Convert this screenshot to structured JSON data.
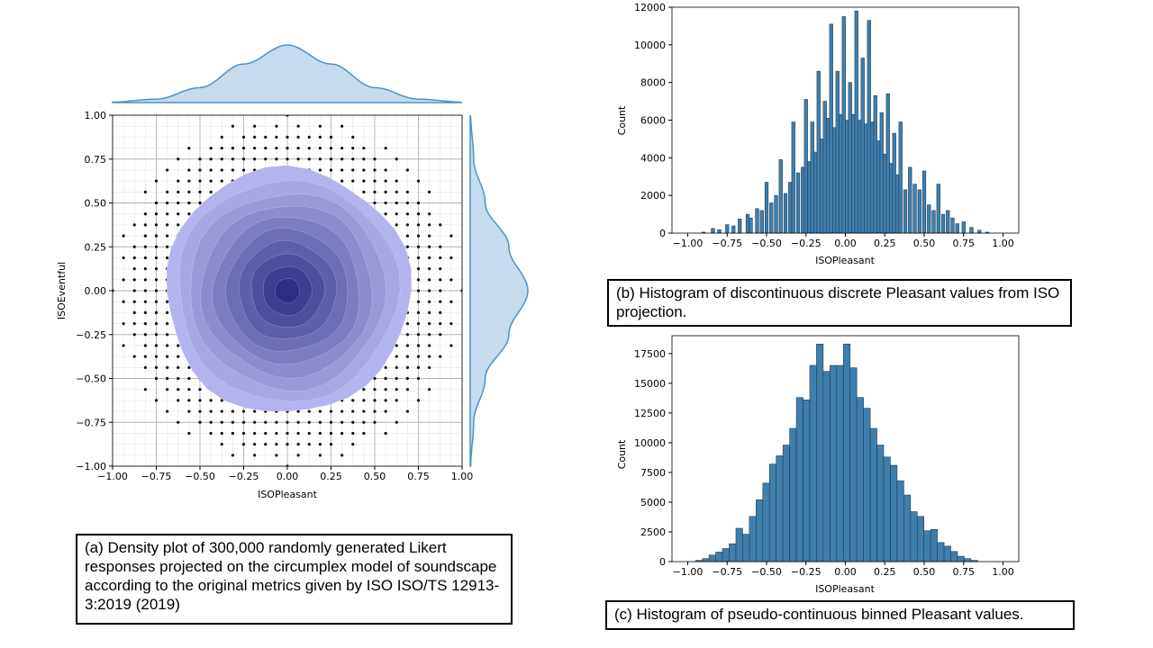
{
  "captions": {
    "a": "(a) Density plot of 300,000 randomly generated Likert responses projected on the circumplex model of soundscape according to the original metrics given by ISO ISO/TS 12913-3:2019 (2019)",
    "b": "(b) Histogram of discontinuous discrete Pleasant values from ISO projection.",
    "c": "(c) Histogram of pseudo-continuous binned Pleasant values."
  },
  "colors": {
    "kde_fill": "#c6dbee",
    "kde_line": "#4b93c8",
    "bar_fill": "#3f7fae",
    "bar_edge": "#1f3d55",
    "point": "#111111",
    "density_outer": "#b3b3ee",
    "density_inner": "#2e2e86"
  },
  "chart_data": [
    {
      "id": "a",
      "type": "scatter",
      "title": "",
      "xlabel": "ISOPleasant",
      "ylabel": "ISOEventful",
      "xlim": [
        -1.0,
        1.0
      ],
      "ylim": [
        -1.0,
        1.0
      ],
      "xticks": [
        "−1.00",
        "−0.75",
        "−0.50",
        "−0.25",
        "0.00",
        "0.25",
        "0.50",
        "0.75",
        "1.00"
      ],
      "yticks": [
        "−1.00",
        "−0.75",
        "−0.50",
        "−0.25",
        "0.00",
        "0.25",
        "0.50",
        "0.75",
        "1.00"
      ],
      "grid": true,
      "points": "discrete Likert projections on a grid of step 0.0625, shown within radius 1.0",
      "density_contour_radius": 0.7,
      "marginal_kde": {
        "x": [
          -1.0,
          -0.75,
          -0.5,
          -0.25,
          0.0,
          0.25,
          0.5,
          0.75,
          1.0
        ],
        "density": [
          0.01,
          0.06,
          0.26,
          0.67,
          1.0,
          0.67,
          0.26,
          0.06,
          0.01
        ]
      }
    },
    {
      "id": "b",
      "type": "bar",
      "title": "",
      "xlabel": "ISOPleasant",
      "ylabel": "Count",
      "xlim": [
        -1.1,
        1.1
      ],
      "ylim": [
        0,
        12000
      ],
      "xticks": [
        "−1.00",
        "−0.75",
        "−0.50",
        "−0.25",
        "0.00",
        "0.25",
        "0.50",
        "0.75",
        "1.00"
      ],
      "yticks": [
        "0",
        "2000",
        "4000",
        "6000",
        "8000",
        "10000",
        "12000"
      ],
      "bin_width": 0.0208,
      "bins": [
        {
          "x": -0.9,
          "y": 50
        },
        {
          "x": -0.84,
          "y": 250
        },
        {
          "x": -0.8,
          "y": 180
        },
        {
          "x": -0.75,
          "y": 450
        },
        {
          "x": -0.71,
          "y": 380
        },
        {
          "x": -0.67,
          "y": 750
        },
        {
          "x": -0.62,
          "y": 1000
        },
        {
          "x": -0.6,
          "y": 800
        },
        {
          "x": -0.56,
          "y": 1300
        },
        {
          "x": -0.53,
          "y": 1200
        },
        {
          "x": -0.5,
          "y": 2700
        },
        {
          "x": -0.47,
          "y": 1600
        },
        {
          "x": -0.44,
          "y": 2000
        },
        {
          "x": -0.41,
          "y": 3900
        },
        {
          "x": -0.38,
          "y": 2100
        },
        {
          "x": -0.35,
          "y": 2700
        },
        {
          "x": -0.33,
          "y": 5900
        },
        {
          "x": -0.3,
          "y": 3200
        },
        {
          "x": -0.27,
          "y": 3500
        },
        {
          "x": -0.25,
          "y": 7100
        },
        {
          "x": -0.23,
          "y": 3800
        },
        {
          "x": -0.21,
          "y": 5900
        },
        {
          "x": -0.19,
          "y": 4300
        },
        {
          "x": -0.17,
          "y": 8600
        },
        {
          "x": -0.15,
          "y": 5000
        },
        {
          "x": -0.13,
          "y": 7000
        },
        {
          "x": -0.11,
          "y": 6100
        },
        {
          "x": -0.09,
          "y": 11100
        },
        {
          "x": -0.07,
          "y": 5600
        },
        {
          "x": -0.05,
          "y": 8600
        },
        {
          "x": -0.03,
          "y": 6300
        },
        {
          "x": -0.01,
          "y": 11500
        },
        {
          "x": 0.01,
          "y": 6000
        },
        {
          "x": 0.03,
          "y": 8000
        },
        {
          "x": 0.05,
          "y": 6300
        },
        {
          "x": 0.07,
          "y": 11800
        },
        {
          "x": 0.09,
          "y": 6000
        },
        {
          "x": 0.11,
          "y": 9300
        },
        {
          "x": 0.13,
          "y": 5800
        },
        {
          "x": 0.15,
          "y": 11300
        },
        {
          "x": 0.17,
          "y": 5900
        },
        {
          "x": 0.19,
          "y": 7300
        },
        {
          "x": 0.21,
          "y": 4900
        },
        {
          "x": 0.23,
          "y": 6400
        },
        {
          "x": 0.25,
          "y": 4200
        },
        {
          "x": 0.27,
          "y": 7400
        },
        {
          "x": 0.29,
          "y": 3700
        },
        {
          "x": 0.31,
          "y": 5300
        },
        {
          "x": 0.33,
          "y": 3100
        },
        {
          "x": 0.35,
          "y": 5900
        },
        {
          "x": 0.38,
          "y": 2300
        },
        {
          "x": 0.41,
          "y": 3500
        },
        {
          "x": 0.44,
          "y": 2600
        },
        {
          "x": 0.47,
          "y": 2300
        },
        {
          "x": 0.5,
          "y": 3300
        },
        {
          "x": 0.53,
          "y": 1500
        },
        {
          "x": 0.56,
          "y": 1200
        },
        {
          "x": 0.59,
          "y": 2600
        },
        {
          "x": 0.62,
          "y": 1000
        },
        {
          "x": 0.65,
          "y": 1200
        },
        {
          "x": 0.68,
          "y": 800
        },
        {
          "x": 0.71,
          "y": 500
        },
        {
          "x": 0.75,
          "y": 600
        },
        {
          "x": 0.8,
          "y": 300
        },
        {
          "x": 0.85,
          "y": 150
        },
        {
          "x": 0.9,
          "y": 50
        }
      ]
    },
    {
      "id": "c",
      "type": "bar",
      "title": "",
      "xlabel": "ISOPleasant",
      "ylabel": "Count",
      "xlim": [
        -1.1,
        1.1
      ],
      "ylim": [
        0,
        19000
      ],
      "xticks": [
        "−1.00",
        "−0.75",
        "−0.50",
        "−0.25",
        "0.00",
        "0.25",
        "0.50",
        "0.75",
        "1.00"
      ],
      "yticks": [
        "0",
        "2500",
        "5000",
        "7500",
        "10000",
        "12500",
        "15000",
        "17500"
      ],
      "bin_start": -0.95,
      "bin_width": 0.0426,
      "counts": [
        100,
        250,
        550,
        800,
        1100,
        1500,
        2800,
        2300,
        3800,
        5200,
        6600,
        8200,
        8900,
        9800,
        11200,
        13800,
        13600,
        16500,
        18300,
        16000,
        16500,
        16500,
        18300,
        16300,
        13800,
        12900,
        11200,
        9800,
        8800,
        8100,
        6800,
        5600,
        4200,
        3800,
        2600,
        2700,
        1600,
        1300,
        850,
        450,
        250,
        100
      ]
    }
  ]
}
